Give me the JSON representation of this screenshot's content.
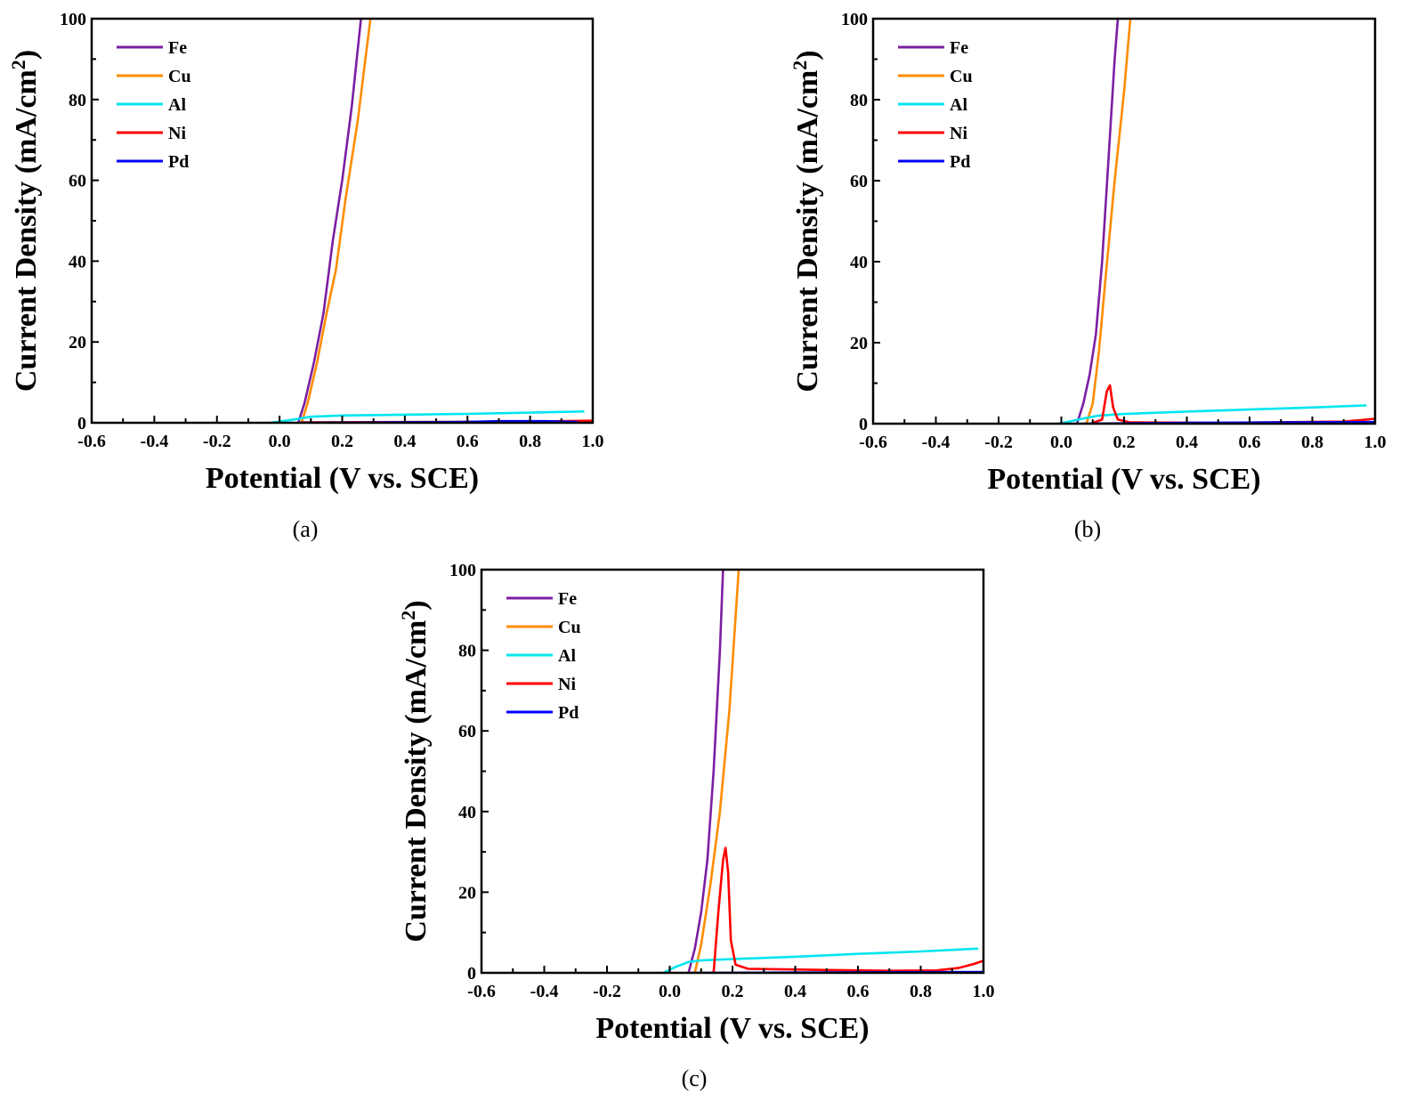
{
  "chart_data": [
    {
      "id": "a",
      "type": "line",
      "caption": "(a)",
      "xlabel": "Potential (V vs. SCE)",
      "ylabel_main": "Current Density (mA/cm",
      "ylabel_sup": "2",
      "ylabel_end": ")",
      "xlim": [
        -0.6,
        1.0
      ],
      "ylim": [
        0,
        100
      ],
      "xticks": [
        -0.6,
        -0.4,
        -0.2,
        0.0,
        0.2,
        0.4,
        0.6,
        0.8,
        1.0
      ],
      "xtick_labels": [
        "-0.6",
        "-0.4",
        "-0.2",
        "0.0",
        "0.2",
        "0.4",
        "0.6",
        "0.8",
        "1.0"
      ],
      "yticks": [
        0,
        20,
        40,
        60,
        80,
        100
      ],
      "ytick_labels": [
        "0",
        "20",
        "40",
        "60",
        "80",
        "100"
      ],
      "legend_position": "top-left",
      "series": [
        {
          "name": "Fe",
          "color": "#7B1FA2",
          "points": [
            [
              0.06,
              0
            ],
            [
              0.08,
              5
            ],
            [
              0.11,
              15
            ],
            [
              0.14,
              27
            ],
            [
              0.17,
              45
            ],
            [
              0.2,
              60
            ],
            [
              0.23,
              78
            ],
            [
              0.26,
              100
            ]
          ]
        },
        {
          "name": "Cu",
          "color": "#FF8C00",
          "points": [
            [
              0.07,
              0
            ],
            [
              0.09,
              5
            ],
            [
              0.12,
              15
            ],
            [
              0.15,
              27
            ],
            [
              0.18,
              38
            ],
            [
              0.21,
              55
            ],
            [
              0.25,
              75
            ],
            [
              0.29,
              100
            ]
          ]
        },
        {
          "name": "Al",
          "color": "#00E5EE",
          "points": [
            [
              -0.03,
              0
            ],
            [
              0.02,
              0.5
            ],
            [
              0.06,
              1.0
            ],
            [
              0.1,
              1.5
            ],
            [
              0.2,
              1.8
            ],
            [
              0.4,
              2.0
            ],
            [
              0.6,
              2.2
            ],
            [
              0.8,
              2.5
            ],
            [
              0.97,
              2.8
            ]
          ]
        },
        {
          "name": "Ni",
          "color": "#FF0000",
          "points": [
            [
              0.07,
              0.1
            ],
            [
              0.5,
              0.2
            ],
            [
              0.8,
              0.3
            ],
            [
              1.0,
              0.5
            ]
          ]
        },
        {
          "name": "Pd",
          "color": "#0000FF",
          "points": [
            [
              0.07,
              0
            ],
            [
              0.6,
              0.2
            ],
            [
              0.7,
              0.4
            ],
            [
              0.85,
              0.4
            ],
            [
              0.95,
              0.2
            ]
          ]
        }
      ]
    },
    {
      "id": "b",
      "type": "line",
      "caption": "(b)",
      "xlabel": "Potential (V vs. SCE)",
      "ylabel_main": "Current Density (mA/cm",
      "ylabel_sup": "2",
      "ylabel_end": ")",
      "xlim": [
        -0.6,
        1.0
      ],
      "ylim": [
        0,
        100
      ],
      "xticks": [
        -0.6,
        -0.4,
        -0.2,
        0.0,
        0.2,
        0.4,
        0.6,
        0.8,
        1.0
      ],
      "xtick_labels": [
        "-0.6",
        "-0.4",
        "-0.2",
        "0.0",
        "0.2",
        "0.4",
        "0.6",
        "0.8",
        "1.0"
      ],
      "yticks": [
        0,
        20,
        40,
        60,
        80,
        100
      ],
      "ytick_labels": [
        "0",
        "20",
        "40",
        "60",
        "80",
        "100"
      ],
      "legend_position": "top-left",
      "series": [
        {
          "name": "Fe",
          "color": "#7B1FA2",
          "points": [
            [
              0.05,
              0
            ],
            [
              0.07,
              5
            ],
            [
              0.09,
              12
            ],
            [
              0.11,
              22
            ],
            [
              0.13,
              40
            ],
            [
              0.15,
              65
            ],
            [
              0.17,
              90
            ],
            [
              0.18,
              100
            ]
          ]
        },
        {
          "name": "Cu",
          "color": "#FF8C00",
          "points": [
            [
              0.08,
              0
            ],
            [
              0.1,
              5
            ],
            [
              0.12,
              18
            ],
            [
              0.14,
              35
            ],
            [
              0.17,
              60
            ],
            [
              0.2,
              82
            ],
            [
              0.22,
              100
            ]
          ]
        },
        {
          "name": "Al",
          "color": "#00E5EE",
          "points": [
            [
              -0.01,
              0
            ],
            [
              0.03,
              0.6
            ],
            [
              0.07,
              1.3
            ],
            [
              0.12,
              2.0
            ],
            [
              0.2,
              2.4
            ],
            [
              0.4,
              3.0
            ],
            [
              0.6,
              3.5
            ],
            [
              0.8,
              4.0
            ],
            [
              0.97,
              4.5
            ]
          ]
        },
        {
          "name": "Ni",
          "color": "#FF0000",
          "points": [
            [
              0.1,
              0.2
            ],
            [
              0.13,
              1.0
            ],
            [
              0.145,
              8.0
            ],
            [
              0.155,
              9.5
            ],
            [
              0.165,
              4.0
            ],
            [
              0.18,
              1.0
            ],
            [
              0.22,
              0.3
            ],
            [
              0.5,
              0.2
            ],
            [
              0.9,
              0.5
            ],
            [
              1.0,
              1.2
            ]
          ]
        },
        {
          "name": "Pd",
          "color": "#0000FF",
          "points": [
            [
              0.07,
              0
            ],
            [
              0.4,
              0.2
            ],
            [
              0.7,
              0.3
            ],
            [
              1.0,
              0.4
            ]
          ]
        }
      ]
    },
    {
      "id": "c",
      "type": "line",
      "caption": "(c)",
      "xlabel": "Potential (V vs. SCE)",
      "ylabel_main": "Current Density (mA/cm",
      "ylabel_sup": "2",
      "ylabel_end": ")",
      "xlim": [
        -0.6,
        1.0
      ],
      "ylim": [
        0,
        100
      ],
      "xticks": [
        -0.6,
        -0.4,
        -0.2,
        0.0,
        0.2,
        0.4,
        0.6,
        0.8,
        1.0
      ],
      "xtick_labels": [
        "-0.6",
        "-0.4",
        "-0.2",
        "0.0",
        "0.2",
        "0.4",
        "0.6",
        "0.8",
        "1.0"
      ],
      "yticks": [
        0,
        20,
        40,
        60,
        80,
        100
      ],
      "ytick_labels": [
        "0",
        "20",
        "40",
        "60",
        "80",
        "100"
      ],
      "legend_position": "top-left",
      "series": [
        {
          "name": "Fe",
          "color": "#7B1FA2",
          "points": [
            [
              0.06,
              0
            ],
            [
              0.08,
              6
            ],
            [
              0.1,
              15
            ],
            [
              0.12,
              28
            ],
            [
              0.14,
              50
            ],
            [
              0.16,
              80
            ],
            [
              0.17,
              100
            ]
          ]
        },
        {
          "name": "Cu",
          "color": "#FF8C00",
          "points": [
            [
              0.08,
              0
            ],
            [
              0.1,
              7
            ],
            [
              0.13,
              22
            ],
            [
              0.16,
              40
            ],
            [
              0.19,
              65
            ],
            [
              0.22,
              100
            ]
          ]
        },
        {
          "name": "Al",
          "color": "#00E5EE",
          "points": [
            [
              -0.02,
              0
            ],
            [
              0.02,
              1.5
            ],
            [
              0.06,
              2.7
            ],
            [
              0.1,
              3.1
            ],
            [
              0.2,
              3.4
            ],
            [
              0.4,
              4.0
            ],
            [
              0.6,
              4.7
            ],
            [
              0.8,
              5.3
            ],
            [
              0.98,
              6.0
            ]
          ]
        },
        {
          "name": "Ni",
          "color": "#FF0000",
          "points": [
            [
              0.14,
              0
            ],
            [
              0.155,
              15
            ],
            [
              0.17,
              28
            ],
            [
              0.178,
              31
            ],
            [
              0.186,
              25
            ],
            [
              0.195,
              8
            ],
            [
              0.21,
              2
            ],
            [
              0.25,
              1
            ],
            [
              0.5,
              0.7
            ],
            [
              0.7,
              0.5
            ],
            [
              0.85,
              0.6
            ],
            [
              0.92,
              1.2
            ],
            [
              0.97,
              2.2
            ],
            [
              1.0,
              3.0
            ]
          ]
        },
        {
          "name": "Pd",
          "color": "#0000FF",
          "points": [
            [
              0.07,
              0
            ],
            [
              0.5,
              0.1
            ],
            [
              1.0,
              0.2
            ]
          ]
        }
      ]
    }
  ]
}
